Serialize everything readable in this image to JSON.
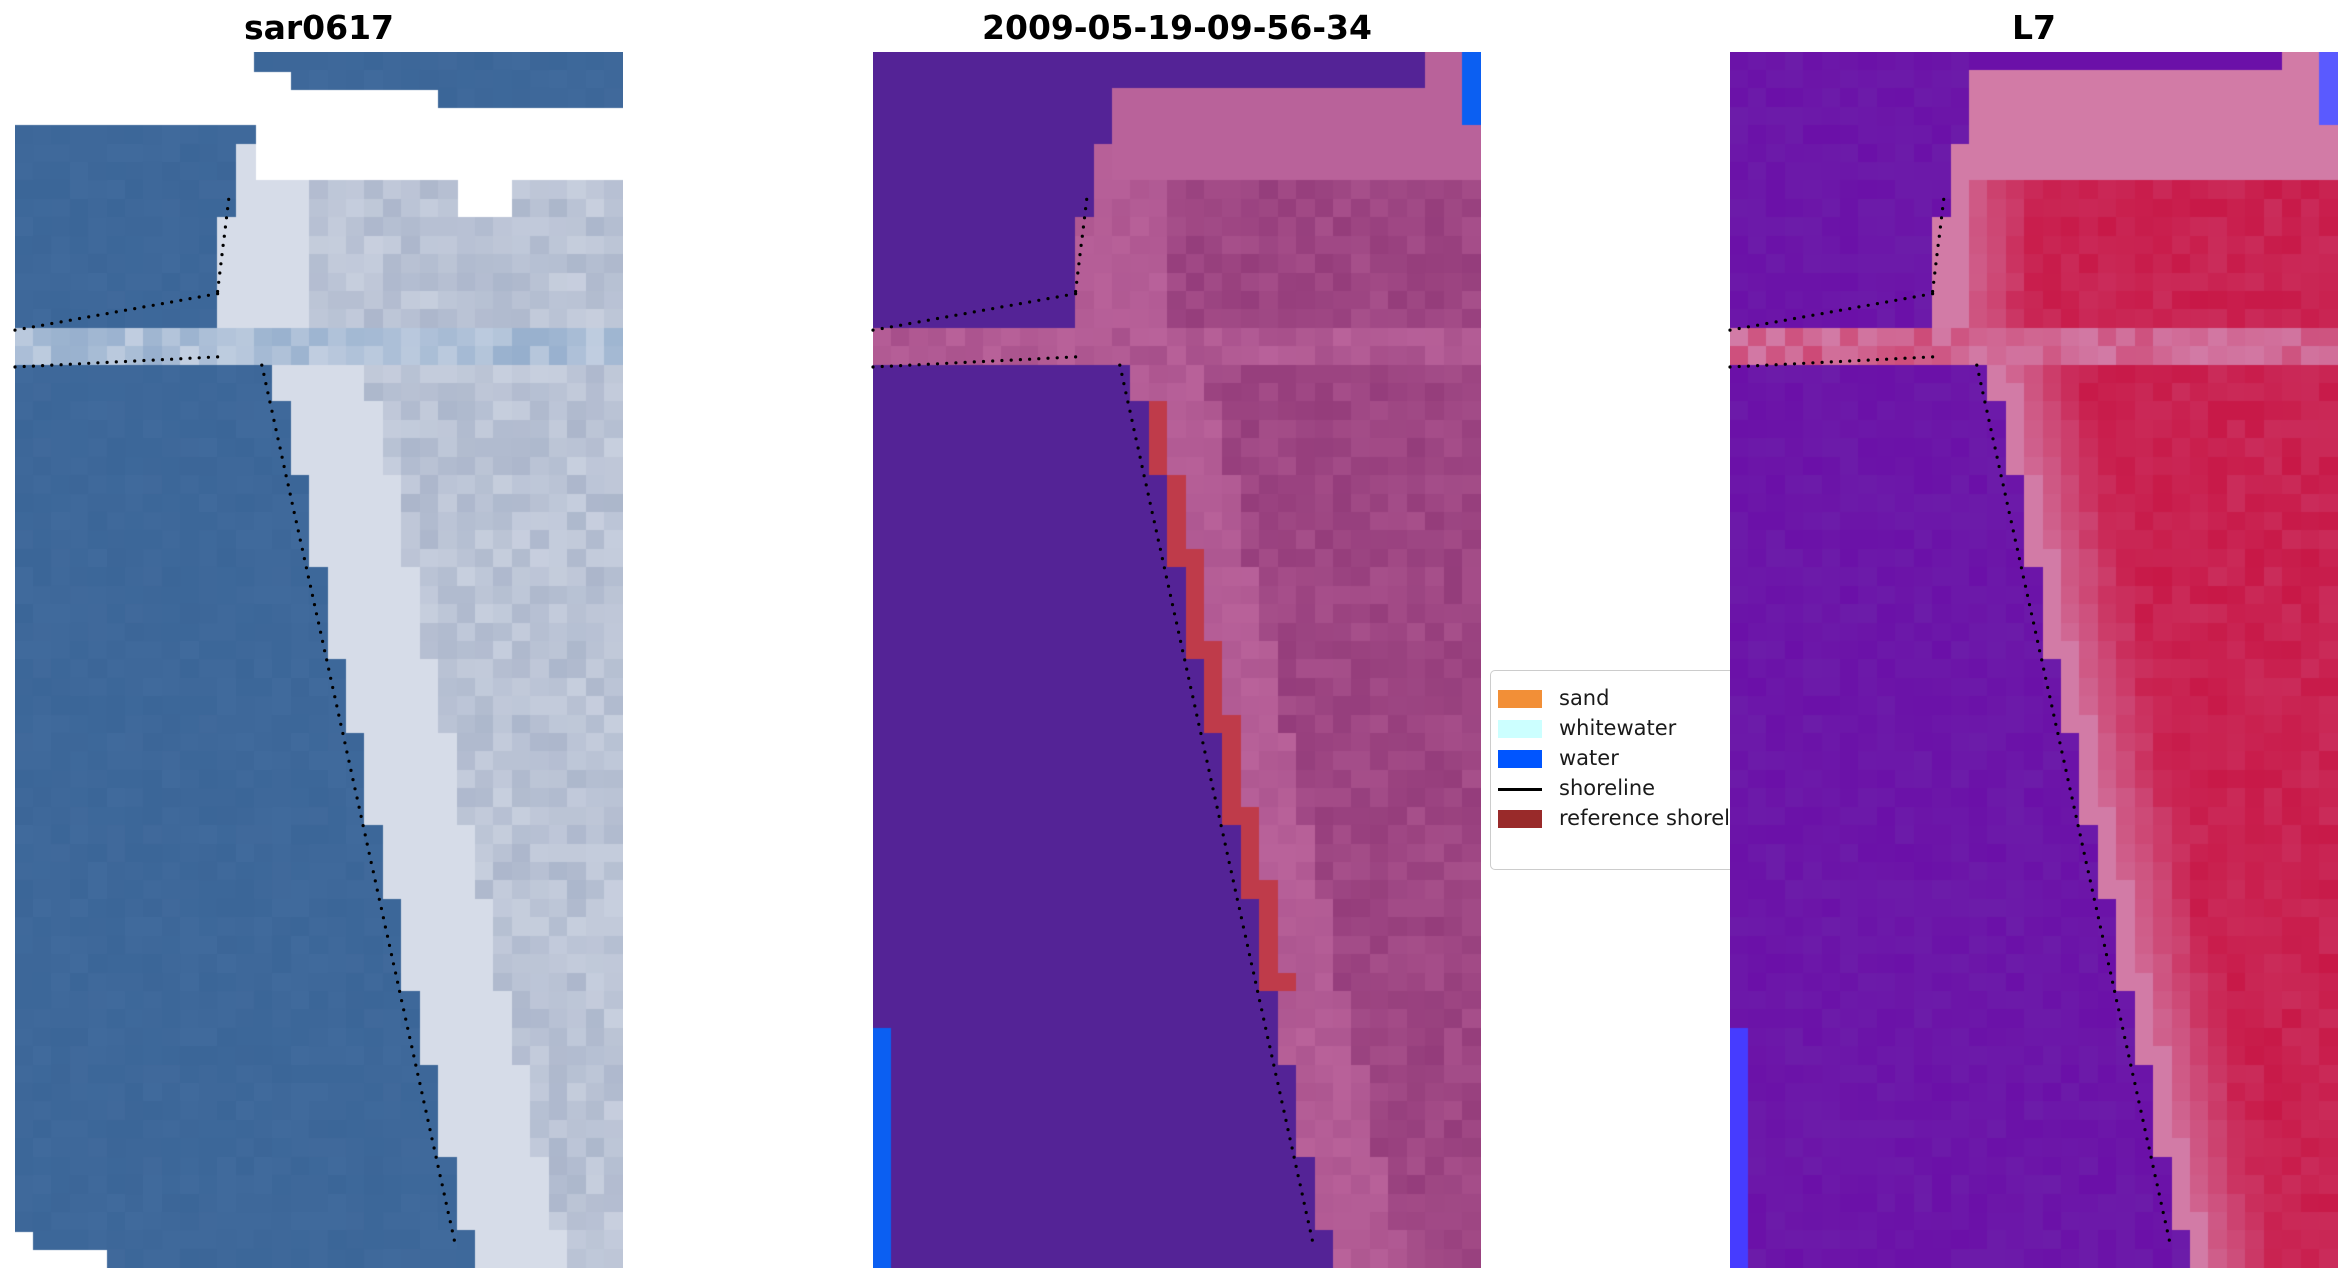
{
  "panels": [
    {
      "id": "p1",
      "title": "sar0617",
      "style": "rgb"
    },
    {
      "id": "p2",
      "title": "2009-05-19-09-56-34",
      "style": "classified"
    },
    {
      "id": "p3",
      "title": "L7",
      "style": "index"
    }
  ],
  "legend": {
    "items": [
      {
        "label": "sand",
        "color": "#f28f37",
        "kind": "patch"
      },
      {
        "label": "whitewater",
        "color": "#ccffff",
        "kind": "patch"
      },
      {
        "label": "water",
        "color": "#0055ff",
        "kind": "patch"
      },
      {
        "label": "shoreline",
        "color": "#000000",
        "kind": "line"
      },
      {
        "label": "reference shoreline",
        "color": "#992a2a",
        "kind": "patch"
      }
    ]
  },
  "colors": {
    "sea_rgb": "#3b6698",
    "sand_rgb": "#dfe4ee",
    "class_water": "#542396",
    "class_land": "#b9629a",
    "class_land_dark": "#8b3373",
    "class_ref_shoreline": "#bf3b4a",
    "class_blue": "#0b5ff2",
    "index_water": "#6b10a8",
    "index_land": "#c81847",
    "index_buffer": "#d27ba6"
  }
}
